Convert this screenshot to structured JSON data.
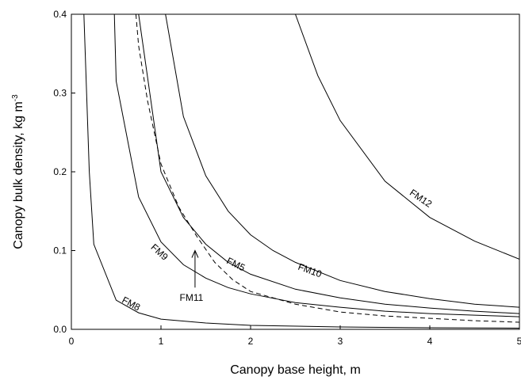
{
  "chart_data": {
    "type": "line",
    "xlabel": "Canopy base height, m",
    "ylabel_text": "Canopy bulk density, kg m",
    "ylabel_superscript": "-3",
    "xlim": [
      0,
      5
    ],
    "ylim": [
      0,
      0.4
    ],
    "x_ticks": [
      "0",
      "1",
      "2",
      "3",
      "4",
      "5"
    ],
    "y_ticks": [
      "0.0",
      "0.1",
      "0.2",
      "0.3",
      "0.4"
    ],
    "grid": false,
    "legend": "none",
    "series": [
      {
        "name": "FM8",
        "style": "solid",
        "x": [
          0.14,
          0.17,
          0.2,
          0.25,
          0.5,
          0.75,
          1.0,
          1.5,
          2.0,
          3.0,
          4.0,
          5.0
        ],
        "y": [
          0.4,
          0.3,
          0.2,
          0.108,
          0.037,
          0.021,
          0.013,
          0.008,
          0.005,
          0.003,
          0.002,
          0.0015
        ]
      },
      {
        "name": "FM9",
        "style": "solid",
        "x": [
          0.48,
          0.5,
          0.75,
          1.0,
          1.25,
          1.5,
          1.75,
          2.0,
          2.5,
          3.0,
          3.5,
          4.0,
          4.5,
          5.0
        ],
        "y": [
          0.4,
          0.315,
          0.168,
          0.111,
          0.082,
          0.065,
          0.053,
          0.045,
          0.034,
          0.028,
          0.023,
          0.02,
          0.018,
          0.016
        ]
      },
      {
        "name": "FM11",
        "style": "dashed",
        "x": [
          0.72,
          0.75,
          0.85,
          1.0,
          1.2,
          1.4,
          1.6,
          1.8,
          2.0,
          2.5,
          3.0,
          3.5,
          4.0,
          4.5,
          5.0
        ],
        "y": [
          0.4,
          0.36,
          0.29,
          0.21,
          0.155,
          0.118,
          0.085,
          0.063,
          0.048,
          0.032,
          0.022,
          0.017,
          0.014,
          0.011,
          0.009
        ]
      },
      {
        "name": "FM5",
        "style": "solid",
        "x": [
          0.75,
          1.0,
          1.25,
          1.5,
          1.75,
          2.0,
          2.5,
          3.0,
          3.5,
          4.0,
          4.5,
          5.0
        ],
        "y": [
          0.4,
          0.2,
          0.142,
          0.108,
          0.085,
          0.07,
          0.051,
          0.04,
          0.032,
          0.027,
          0.023,
          0.02
        ]
      },
      {
        "name": "FM10",
        "style": "solid",
        "x": [
          1.05,
          1.25,
          1.5,
          1.75,
          2.0,
          2.25,
          2.5,
          3.0,
          3.5,
          4.0,
          4.5,
          5.0
        ],
        "y": [
          0.4,
          0.27,
          0.195,
          0.15,
          0.12,
          0.1,
          0.085,
          0.062,
          0.048,
          0.039,
          0.032,
          0.028
        ]
      },
      {
        "name": "FM12",
        "style": "solid",
        "x": [
          2.5,
          2.75,
          3.0,
          3.5,
          4.0,
          4.5,
          5.0
        ],
        "y": [
          0.4,
          0.322,
          0.265,
          0.188,
          0.142,
          0.112,
          0.089
        ]
      }
    ],
    "labels": [
      {
        "text": "FM8",
        "x": 0.65,
        "y": 0.029,
        "rotate": 28
      },
      {
        "text": "FM9",
        "x": 0.96,
        "y": 0.095,
        "rotate": 42
      },
      {
        "text": "FM5",
        "x": 1.82,
        "y": 0.079,
        "rotate": 26
      },
      {
        "text": "FM10",
        "x": 2.65,
        "y": 0.071,
        "rotate": 20
      },
      {
        "text": "FM12",
        "x": 3.88,
        "y": 0.163,
        "rotate": 34
      },
      {
        "text": "FM11",
        "x": 1.34,
        "y": 0.036,
        "rotate": 0
      }
    ],
    "arrow": {
      "from": [
        1.38,
        0.053
      ],
      "to": [
        1.38,
        0.1
      ]
    }
  }
}
